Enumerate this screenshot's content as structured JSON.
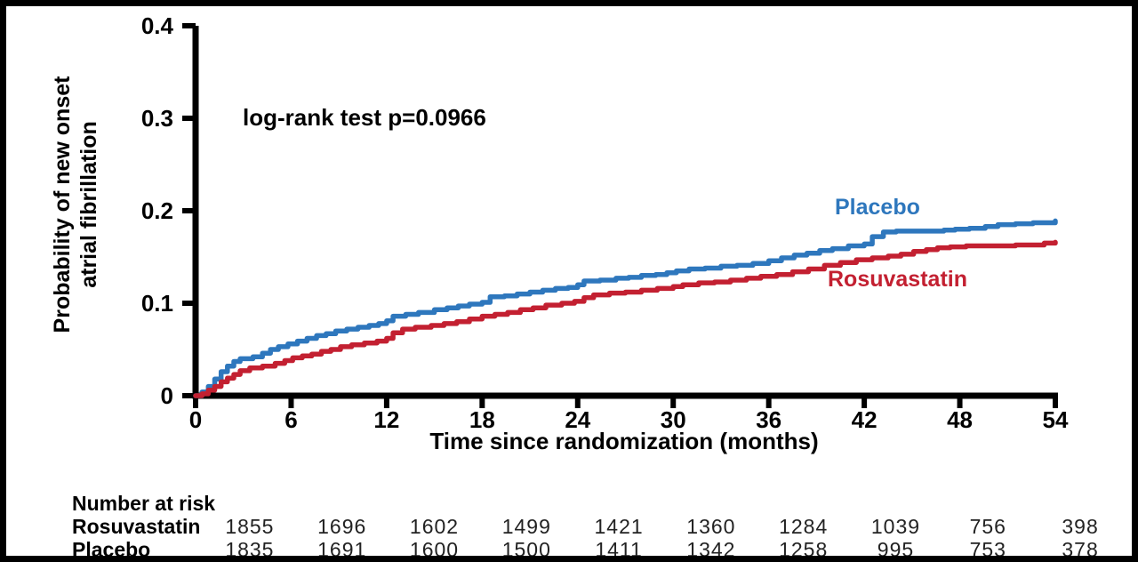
{
  "figure": {
    "y_axis_label_line1": "Probability of new onset",
    "y_axis_label_line2": "atrial fibrillation",
    "x_axis_label": "Time since randomization (months)",
    "annotation": "log-rank test p=0.0966"
  },
  "series_labels": {
    "placebo": "Placebo",
    "rosuvastatin": "Rosuvastatin"
  },
  "colors": {
    "placebo_blue": "#2E77BD",
    "rosuvastatin_red": "#C32031",
    "axis_black": "#000000",
    "background": "#FFFFFF"
  },
  "risk_table": {
    "title": "Number at risk",
    "rows": [
      {
        "label": "Rosuvastatin",
        "counts": [
          "1855",
          "1696",
          "1602",
          "1499",
          "1421",
          "1360",
          "1284",
          "1039",
          "756",
          "398"
        ]
      },
      {
        "label": "Placebo",
        "counts": [
          "1835",
          "1691",
          "1600",
          "1500",
          "1411",
          "1342",
          "1258",
          "995",
          "753",
          "378"
        ]
      }
    ]
  },
  "chart_data": {
    "type": "line",
    "subtype": "kaplan-meier-step",
    "title": "",
    "xlabel": "Time since randomization (months)",
    "ylabel": "Probability of new onset atrial fibrillation",
    "annotation": "log-rank test p=0.0966",
    "xlim": [
      0,
      54
    ],
    "ylim": [
      0,
      0.4
    ],
    "x_ticks": [
      0,
      6,
      12,
      18,
      24,
      30,
      36,
      42,
      48,
      54
    ],
    "y_ticks": [
      0,
      0.1,
      0.2,
      0.3,
      0.4
    ],
    "grid": false,
    "legend_position": "inline-labels",
    "series": [
      {
        "name": "Placebo",
        "color": "#2E77BD",
        "points": [
          [
            0,
            0
          ],
          [
            0.4,
            0.004
          ],
          [
            0.8,
            0.01
          ],
          [
            1.2,
            0.018
          ],
          [
            1.6,
            0.026
          ],
          [
            2,
            0.032
          ],
          [
            2.4,
            0.037
          ],
          [
            2.8,
            0.04
          ],
          [
            3.6,
            0.042
          ],
          [
            4.2,
            0.046
          ],
          [
            4.7,
            0.05
          ],
          [
            5.2,
            0.053
          ],
          [
            5.8,
            0.056
          ],
          [
            6.4,
            0.059
          ],
          [
            7,
            0.062
          ],
          [
            7.6,
            0.065
          ],
          [
            8.2,
            0.067
          ],
          [
            8.8,
            0.07
          ],
          [
            9.5,
            0.072
          ],
          [
            10.2,
            0.074
          ],
          [
            10.9,
            0.076
          ],
          [
            11.5,
            0.078
          ],
          [
            12,
            0.081
          ],
          [
            12.4,
            0.086
          ],
          [
            13.2,
            0.088
          ],
          [
            14,
            0.09
          ],
          [
            15,
            0.093
          ],
          [
            15.8,
            0.095
          ],
          [
            16.5,
            0.097
          ],
          [
            17.2,
            0.099
          ],
          [
            18,
            0.101
          ],
          [
            18.5,
            0.107
          ],
          [
            19.4,
            0.108
          ],
          [
            20.2,
            0.11
          ],
          [
            21,
            0.112
          ],
          [
            21.8,
            0.114
          ],
          [
            22.6,
            0.116
          ],
          [
            23.4,
            0.117
          ],
          [
            24,
            0.12
          ],
          [
            24.4,
            0.124
          ],
          [
            25.4,
            0.125
          ],
          [
            26.4,
            0.127
          ],
          [
            27.2,
            0.128
          ],
          [
            28,
            0.13
          ],
          [
            28.9,
            0.131
          ],
          [
            29.6,
            0.133
          ],
          [
            30.2,
            0.135
          ],
          [
            31,
            0.137
          ],
          [
            32,
            0.138
          ],
          [
            33,
            0.14
          ],
          [
            34,
            0.141
          ],
          [
            35,
            0.143
          ],
          [
            36,
            0.146
          ],
          [
            36.8,
            0.149
          ],
          [
            37.6,
            0.152
          ],
          [
            38.4,
            0.154
          ],
          [
            39.2,
            0.157
          ],
          [
            40,
            0.159
          ],
          [
            41,
            0.162
          ],
          [
            42,
            0.164
          ],
          [
            42.5,
            0.172
          ],
          [
            43.2,
            0.177
          ],
          [
            44,
            0.178
          ],
          [
            46,
            0.178
          ],
          [
            47,
            0.179
          ],
          [
            47.7,
            0.18
          ],
          [
            48.6,
            0.181
          ],
          [
            49.6,
            0.183
          ],
          [
            50.4,
            0.185
          ],
          [
            51.5,
            0.186
          ],
          [
            52.6,
            0.187
          ],
          [
            53.4,
            0.187
          ],
          [
            54,
            0.189
          ]
        ]
      },
      {
        "name": "Rosuvastatin",
        "color": "#C32031",
        "points": [
          [
            0,
            0
          ],
          [
            0.4,
            0.002
          ],
          [
            0.8,
            0.006
          ],
          [
            1.2,
            0.01
          ],
          [
            1.6,
            0.015
          ],
          [
            2,
            0.019
          ],
          [
            2.4,
            0.023
          ],
          [
            2.8,
            0.027
          ],
          [
            3.4,
            0.03
          ],
          [
            4.2,
            0.032
          ],
          [
            5,
            0.035
          ],
          [
            5.6,
            0.038
          ],
          [
            6.1,
            0.041
          ],
          [
            6.7,
            0.043
          ],
          [
            7.3,
            0.045
          ],
          [
            7.9,
            0.048
          ],
          [
            8.5,
            0.05
          ],
          [
            9.1,
            0.053
          ],
          [
            9.8,
            0.055
          ],
          [
            10.6,
            0.057
          ],
          [
            11.4,
            0.059
          ],
          [
            12,
            0.062
          ],
          [
            12.4,
            0.068
          ],
          [
            13,
            0.072
          ],
          [
            13.8,
            0.074
          ],
          [
            14.8,
            0.076
          ],
          [
            15.6,
            0.078
          ],
          [
            16.4,
            0.08
          ],
          [
            17.2,
            0.083
          ],
          [
            18,
            0.086
          ],
          [
            18.8,
            0.088
          ],
          [
            19.6,
            0.09
          ],
          [
            20.4,
            0.093
          ],
          [
            21.2,
            0.095
          ],
          [
            22,
            0.098
          ],
          [
            23,
            0.1
          ],
          [
            23.8,
            0.102
          ],
          [
            24.4,
            0.106
          ],
          [
            25,
            0.109
          ],
          [
            26,
            0.111
          ],
          [
            27,
            0.112
          ],
          [
            28,
            0.114
          ],
          [
            29,
            0.116
          ],
          [
            30,
            0.118
          ],
          [
            30.6,
            0.12
          ],
          [
            31.6,
            0.122
          ],
          [
            32.6,
            0.123
          ],
          [
            33.6,
            0.125
          ],
          [
            34.6,
            0.127
          ],
          [
            35.5,
            0.129
          ],
          [
            36.5,
            0.131
          ],
          [
            37.5,
            0.134
          ],
          [
            38.5,
            0.137
          ],
          [
            39.5,
            0.141
          ],
          [
            40.5,
            0.144
          ],
          [
            41.5,
            0.147
          ],
          [
            42.5,
            0.149
          ],
          [
            43.5,
            0.151
          ],
          [
            44.3,
            0.153
          ],
          [
            45.1,
            0.156
          ],
          [
            45.9,
            0.158
          ],
          [
            46.6,
            0.16
          ],
          [
            47.4,
            0.161
          ],
          [
            48.4,
            0.162
          ],
          [
            50,
            0.162
          ],
          [
            51.5,
            0.163
          ],
          [
            52.6,
            0.163
          ],
          [
            53.3,
            0.165
          ],
          [
            54,
            0.166
          ]
        ]
      }
    ]
  }
}
